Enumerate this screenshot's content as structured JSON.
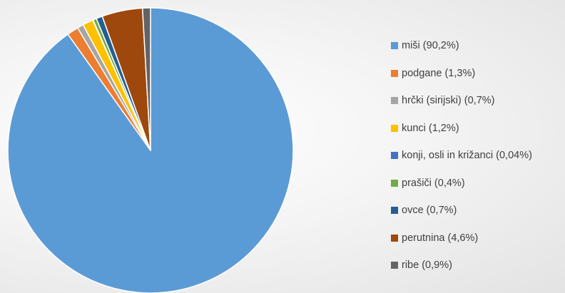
{
  "chart_data": {
    "type": "pie",
    "title": "",
    "start_angle_deg": 0,
    "direction": "clockwise",
    "legend_position": "right",
    "slices": [
      {
        "label": "miši (90,2%)",
        "value": 90.2,
        "color": "#5B9BD5"
      },
      {
        "label": "podgane (1,3%)",
        "value": 1.3,
        "color": "#ED7D31"
      },
      {
        "label": "hrčki (sirijski) (0,7%)",
        "value": 0.7,
        "color": "#A5A5A5"
      },
      {
        "label": "kunci (1,2%)",
        "value": 1.2,
        "color": "#FFC000"
      },
      {
        "label": "konji, osli in križanci (0,04%)",
        "value": 0.04,
        "color": "#4472C4"
      },
      {
        "label": "prašiči (0,4%)",
        "value": 0.4,
        "color": "#70AD47"
      },
      {
        "label": "ovce (0,7%)",
        "value": 0.7,
        "color": "#255E91"
      },
      {
        "label": "perutnina (4,6%)",
        "value": 4.6,
        "color": "#9E480E"
      },
      {
        "label": "ribe (0,9%)",
        "value": 0.9,
        "color": "#636363"
      }
    ]
  }
}
